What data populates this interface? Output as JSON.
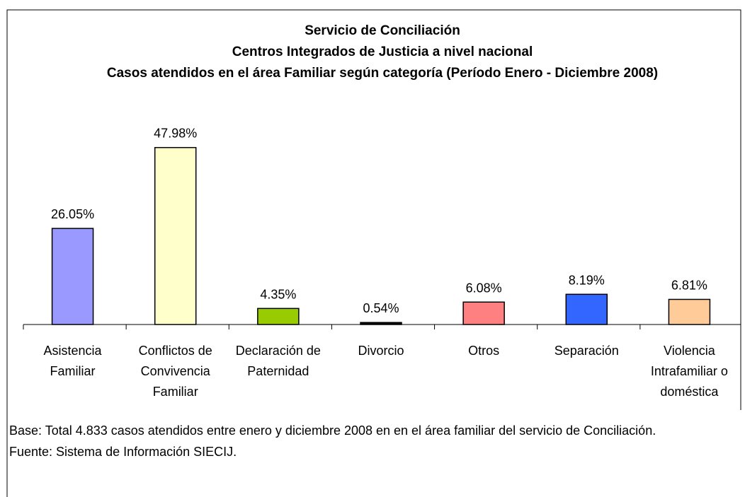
{
  "chart_data": {
    "type": "bar",
    "title": [
      "Servicio de Conciliación",
      "Centros Integrados de Justicia a nivel nacional",
      "Casos atendidos en el área Familiar según categoría  (Período Enero - Diciembre 2008)"
    ],
    "categories": [
      "Asistencia Familiar",
      "Conflictos de Convivencia Familiar",
      "Declaración de Paternidad",
      "Divorcio",
      "Otros",
      "Separación",
      "Violencia Intrafamiliar o doméstica"
    ],
    "values": [
      26.05,
      47.98,
      4.35,
      0.54,
      6.08,
      8.19,
      6.81
    ],
    "value_labels": [
      "26.05%",
      "47.98%",
      "4.35%",
      "0.54%",
      "6.08%",
      "8.19%",
      "6.81%"
    ],
    "colors": [
      "#9999ff",
      "#ffffcc",
      "#99cc00",
      "#000000",
      "#ff8080",
      "#3366ff",
      "#ffcc99"
    ],
    "ylim": [
      0,
      60
    ],
    "notes": [
      "Base: Total 4.833 casos atendidos entre enero y diciembre 2008 en en el área familiar del servicio de Conciliación.",
      "Fuente: Sistema de Información SIECIJ."
    ]
  }
}
